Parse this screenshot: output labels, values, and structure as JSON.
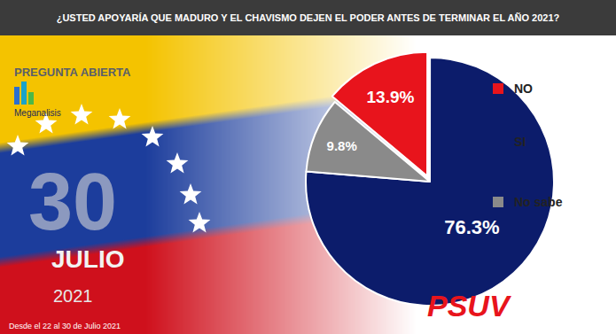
{
  "chart_data": {
    "type": "pie",
    "title": "¿USTED APOYARÍA QUE MADURO Y EL CHAVISMO DEJEN EL PODER ANTES DE TERMINAR EL AÑO 2021?",
    "categories": [
      "NO",
      "SI",
      "No sabe"
    ],
    "values": [
      13.9,
      76.3,
      9.8
    ],
    "value_labels": [
      "13.9%",
      "76.3%",
      "9.8%"
    ],
    "colors": [
      "#e8141c",
      "#0c1c6b",
      "#8a8a8a"
    ],
    "data_labels": true,
    "legend": "right",
    "annotations": [
      "PREGUNTA ABIERTA",
      "Meganalisis",
      "30",
      "JULIO",
      "2021",
      "Desde el 22 al 30 de Julio 2021",
      "PSUV"
    ]
  }
}
